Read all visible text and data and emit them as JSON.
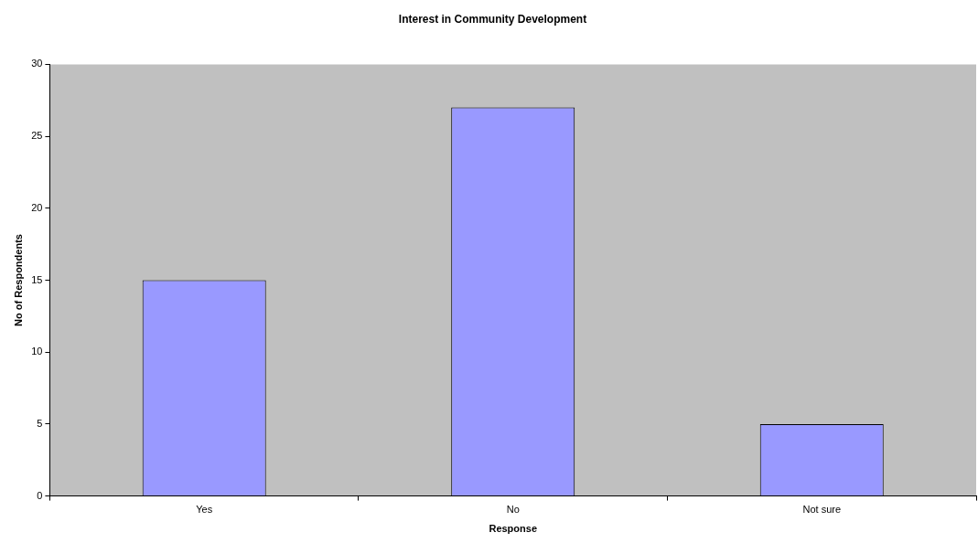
{
  "chart_data": {
    "type": "bar",
    "title": "Interest in Community Development",
    "xlabel": "Response",
    "ylabel": "No of Respondents",
    "categories": [
      "Yes",
      "No",
      "Not sure"
    ],
    "values": [
      15,
      27,
      5
    ],
    "color": "#9999ff",
    "ylim": [
      0,
      30
    ],
    "yticks": [
      0,
      5,
      10,
      15,
      20,
      25,
      30
    ],
    "grid": false,
    "legend": false
  }
}
